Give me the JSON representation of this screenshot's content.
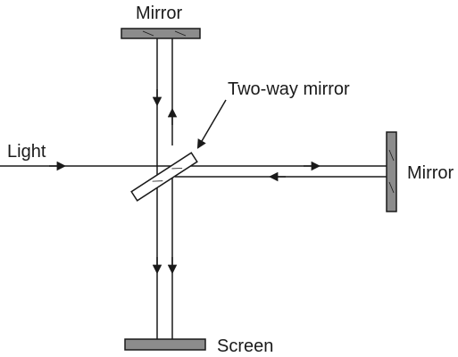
{
  "labels": {
    "top_mirror": "Mirror",
    "two_way_mirror": "Two-way mirror",
    "light": "Light",
    "right_mirror": "Mirror",
    "screen": "Screen"
  },
  "colors": {
    "ink": "#1a1a1a",
    "mirror_fill": "#8c8c8c",
    "background": "#ffffff"
  }
}
